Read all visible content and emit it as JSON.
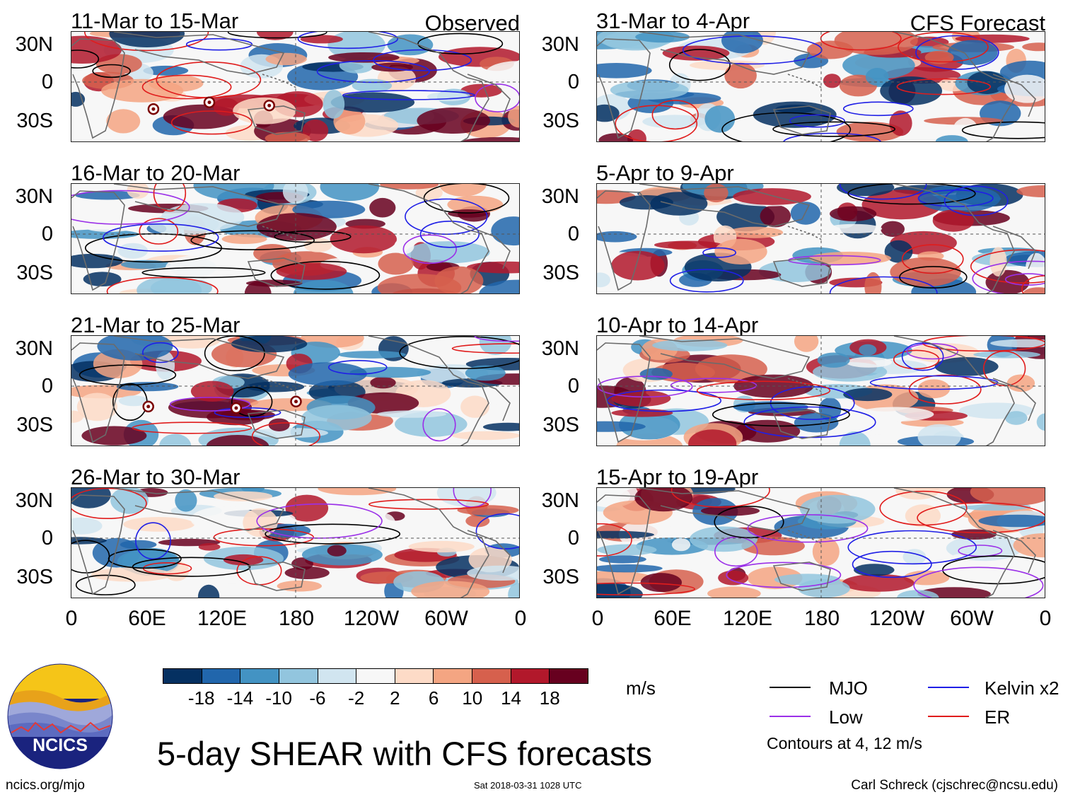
{
  "panels": [
    {
      "title": "11-Mar to 15-Mar",
      "label": "Observed",
      "storms": 3
    },
    {
      "title": "16-Mar to 20-Mar",
      "label": "",
      "storms": 0
    },
    {
      "title": "21-Mar to 25-Mar",
      "label": "",
      "storms": 3
    },
    {
      "title": "26-Mar to 30-Mar",
      "label": "",
      "storms": 0
    },
    {
      "title": "31-Mar to 4-Apr",
      "label": "CFS Forecast",
      "storms": 0
    },
    {
      "title": "5-Apr to 9-Apr",
      "label": "",
      "storms": 0
    },
    {
      "title": "10-Apr to 14-Apr",
      "label": "",
      "storms": 0
    },
    {
      "title": "15-Apr to 19-Apr",
      "label": "",
      "storms": 0
    }
  ],
  "y_axis": {
    "top": "30N",
    "mid": "0",
    "bottom": "30S"
  },
  "x_axis": [
    "0",
    "60E",
    "120E",
    "180",
    "120W",
    "60W",
    "0"
  ],
  "colorbar": {
    "units": "m/s",
    "labels": [
      "-18",
      "-14",
      "-10",
      "-6",
      "-2",
      "2",
      "6",
      "10",
      "14",
      "18"
    ],
    "colors": [
      "#053061",
      "#2166ac",
      "#4393c3",
      "#92c5de",
      "#d1e5f0",
      "#f7f7f7",
      "#fddbc7",
      "#f4a582",
      "#d6604d",
      "#b2182b",
      "#67001f"
    ]
  },
  "legend": {
    "items": [
      {
        "label": "MJO",
        "color": "#000000"
      },
      {
        "label": "Kelvin x2",
        "color": "#1f1fe6"
      },
      {
        "label": "Low",
        "color": "#9b30e8"
      },
      {
        "label": "ER",
        "color": "#e01c1c"
      }
    ],
    "note": "Contours at 4, 12 m/s"
  },
  "title": "5-day SHEAR with CFS forecasts",
  "logo_text": "NCICS",
  "footer": {
    "left": "ncics.org/mjo",
    "center": "Sat 2018-03-31 1028 UTC",
    "right": "Carl Schreck (cjschrec@ncsu.edu)"
  }
}
